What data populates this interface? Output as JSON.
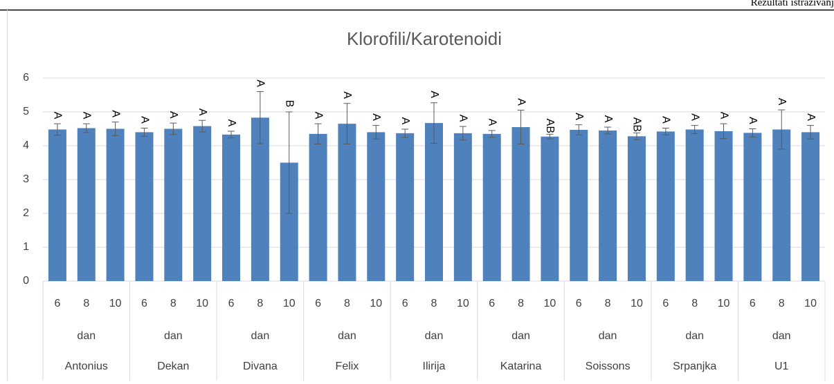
{
  "header": {
    "text": "Rezultati istraživanj"
  },
  "chart_data": {
    "type": "bar",
    "title": "Klorofili/Karotenoidi",
    "groups": [
      {
        "name": "Antonius",
        "label": "dan",
        "days": [
          "6",
          "8",
          "10"
        ]
      },
      {
        "name": "Dekan",
        "label": "dan",
        "days": [
          "6",
          "8",
          "10"
        ]
      },
      {
        "name": "Divana",
        "label": "dan",
        "days": [
          "6",
          "8",
          "10"
        ]
      },
      {
        "name": "Felix",
        "label": "dan",
        "days": [
          "6",
          "8",
          "10"
        ]
      },
      {
        "name": "Ilirija",
        "label": "dan",
        "days": [
          "6",
          "8",
          "10"
        ]
      },
      {
        "name": "Katarina",
        "label": "dan",
        "days": [
          "6",
          "8",
          "10"
        ]
      },
      {
        "name": "Soissons",
        "label": "dan",
        "days": [
          "6",
          "8",
          "10"
        ]
      },
      {
        "name": "Srpanjka",
        "label": "dan",
        "days": [
          "6",
          "8",
          "10"
        ]
      },
      {
        "name": "U1",
        "label": "dan",
        "days": [
          "6",
          "8",
          "10"
        ]
      }
    ],
    "values": [
      4.48,
      4.52,
      4.5,
      4.4,
      4.5,
      4.58,
      4.33,
      4.83,
      3.5,
      4.35,
      4.65,
      4.4,
      4.37,
      4.67,
      4.37,
      4.35,
      4.55,
      4.27,
      4.47,
      4.45,
      4.28,
      4.42,
      4.48,
      4.43,
      4.38,
      4.48,
      4.4
    ],
    "errors": [
      0.17,
      0.13,
      0.2,
      0.12,
      0.17,
      0.17,
      0.1,
      0.77,
      1.5,
      0.3,
      0.6,
      0.2,
      0.12,
      0.6,
      0.2,
      0.1,
      0.5,
      0.07,
      0.15,
      0.1,
      0.1,
      0.1,
      0.12,
      0.22,
      0.12,
      0.58,
      0.2
    ],
    "letters": [
      "A",
      "A",
      "A",
      "A",
      "A",
      "A",
      "A",
      "A",
      "B",
      "A",
      "A",
      "A",
      "A",
      "A",
      "A",
      "A",
      "A",
      "AB",
      "A",
      "A",
      "AB",
      "A",
      "A",
      "A",
      "A",
      "A",
      "A"
    ],
    "color": "#4f81bd",
    "ylim": [
      0,
      6
    ],
    "yticks": [
      0,
      1,
      2,
      3,
      4,
      5,
      6
    ],
    "grid": true
  }
}
